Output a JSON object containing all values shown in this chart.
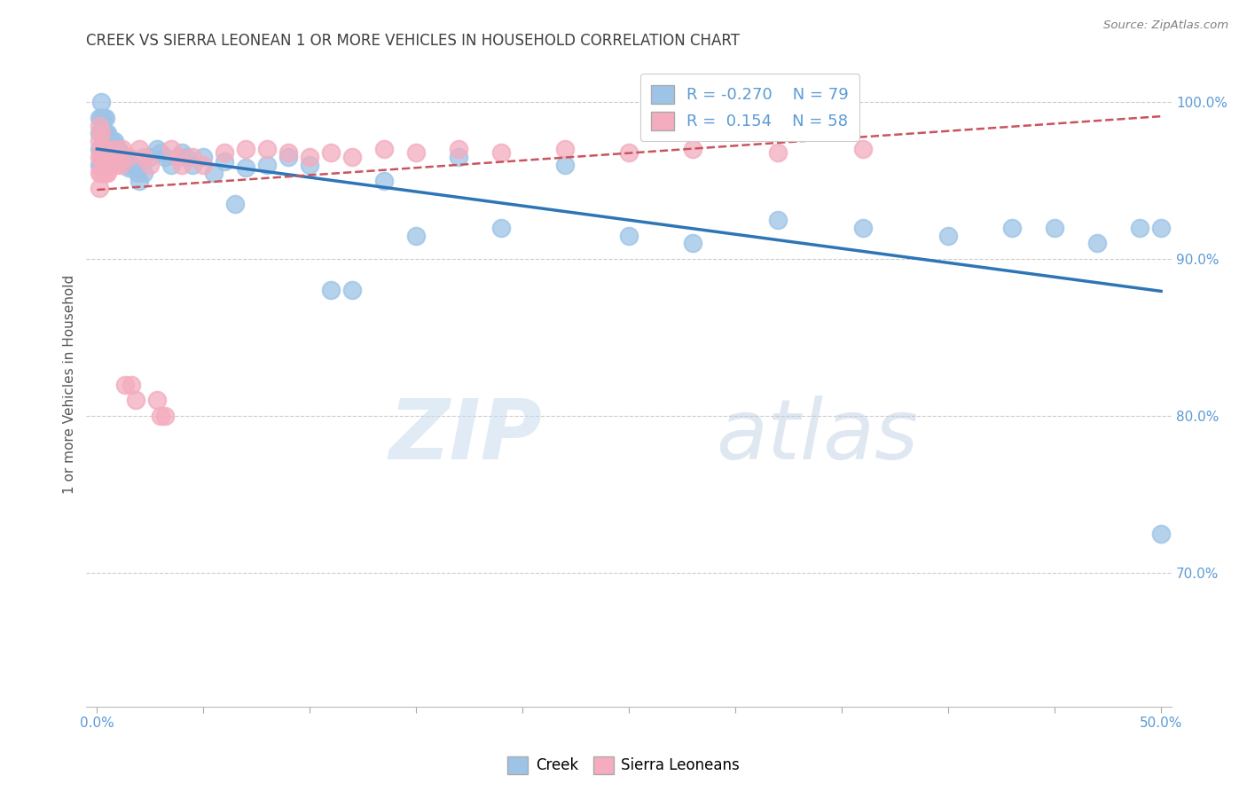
{
  "title": "CREEK VS SIERRA LEONEAN 1 OR MORE VEHICLES IN HOUSEHOLD CORRELATION CHART",
  "source": "Source: ZipAtlas.com",
  "ylabel": "1 or more Vehicles in Household",
  "ytick_labels": [
    "100.0%",
    "90.0%",
    "80.0%",
    "70.0%"
  ],
  "ytick_values": [
    1.0,
    0.9,
    0.8,
    0.7
  ],
  "xlim": [
    -0.005,
    0.505
  ],
  "ylim": [
    0.615,
    1.025
  ],
  "watermark_zip": "ZIP",
  "watermark_atlas": "atlas",
  "legend_creek": "Creek",
  "legend_sierra": "Sierra Leoneans",
  "creek_R": -0.27,
  "creek_N": 79,
  "sierra_R": 0.154,
  "sierra_N": 58,
  "creek_color": "#9DC3E6",
  "sierra_color": "#F4ACBE",
  "creek_line_color": "#2E75B6",
  "sierra_line_color": "#C9545E",
  "background_color": "#FFFFFF",
  "grid_color": "#CCCCCC",
  "title_color": "#404040",
  "source_color": "#808080",
  "axis_label_color": "#5B9BD5",
  "creek_x": [
    0.001,
    0.001,
    0.001,
    0.001,
    0.002,
    0.002,
    0.002,
    0.002,
    0.002,
    0.003,
    0.003,
    0.003,
    0.003,
    0.003,
    0.004,
    0.004,
    0.004,
    0.004,
    0.005,
    0.005,
    0.005,
    0.005,
    0.006,
    0.006,
    0.006,
    0.007,
    0.007,
    0.007,
    0.008,
    0.008,
    0.009,
    0.009,
    0.01,
    0.01,
    0.011,
    0.012,
    0.013,
    0.014,
    0.015,
    0.016,
    0.018,
    0.019,
    0.02,
    0.022,
    0.025,
    0.028,
    0.03,
    0.032,
    0.035,
    0.038,
    0.04,
    0.042,
    0.045,
    0.05,
    0.055,
    0.06,
    0.065,
    0.07,
    0.08,
    0.09,
    0.1,
    0.11,
    0.12,
    0.135,
    0.15,
    0.17,
    0.19,
    0.22,
    0.25,
    0.28,
    0.32,
    0.36,
    0.4,
    0.43,
    0.45,
    0.47,
    0.49,
    0.5,
    0.5
  ],
  "creek_y": [
    0.99,
    0.98,
    0.97,
    0.96,
    1.0,
    0.99,
    0.98,
    0.97,
    0.96,
    0.99,
    0.98,
    0.975,
    0.97,
    0.96,
    0.99,
    0.98,
    0.975,
    0.965,
    0.98,
    0.975,
    0.97,
    0.965,
    0.975,
    0.97,
    0.965,
    0.975,
    0.97,
    0.965,
    0.975,
    0.968,
    0.972,
    0.965,
    0.97,
    0.962,
    0.968,
    0.965,
    0.962,
    0.96,
    0.958,
    0.96,
    0.958,
    0.955,
    0.95,
    0.955,
    0.965,
    0.97,
    0.968,
    0.965,
    0.96,
    0.965,
    0.968,
    0.965,
    0.96,
    0.965,
    0.955,
    0.962,
    0.935,
    0.958,
    0.96,
    0.965,
    0.96,
    0.88,
    0.88,
    0.95,
    0.915,
    0.965,
    0.92,
    0.96,
    0.915,
    0.91,
    0.925,
    0.92,
    0.915,
    0.92,
    0.92,
    0.91,
    0.92,
    0.92,
    0.725
  ],
  "sierra_x": [
    0.001,
    0.001,
    0.001,
    0.001,
    0.001,
    0.002,
    0.002,
    0.002,
    0.002,
    0.003,
    0.003,
    0.003,
    0.004,
    0.004,
    0.004,
    0.005,
    0.005,
    0.006,
    0.006,
    0.007,
    0.007,
    0.008,
    0.008,
    0.009,
    0.01,
    0.011,
    0.012,
    0.013,
    0.015,
    0.016,
    0.018,
    0.02,
    0.022,
    0.025,
    0.028,
    0.03,
    0.032,
    0.035,
    0.038,
    0.04,
    0.045,
    0.05,
    0.06,
    0.07,
    0.08,
    0.09,
    0.1,
    0.11,
    0.12,
    0.135,
    0.15,
    0.17,
    0.19,
    0.22,
    0.25,
    0.28,
    0.32,
    0.36
  ],
  "sierra_y": [
    0.985,
    0.975,
    0.965,
    0.955,
    0.945,
    0.98,
    0.97,
    0.965,
    0.955,
    0.965,
    0.96,
    0.955,
    0.97,
    0.965,
    0.955,
    0.965,
    0.955,
    0.965,
    0.96,
    0.965,
    0.96,
    0.97,
    0.965,
    0.96,
    0.965,
    0.96,
    0.97,
    0.82,
    0.965,
    0.82,
    0.81,
    0.97,
    0.965,
    0.96,
    0.81,
    0.8,
    0.8,
    0.97,
    0.965,
    0.96,
    0.965,
    0.96,
    0.968,
    0.97,
    0.97,
    0.968,
    0.965,
    0.968,
    0.965,
    0.97,
    0.968,
    0.97,
    0.968,
    0.97,
    0.968,
    0.97,
    0.968,
    0.97
  ]
}
